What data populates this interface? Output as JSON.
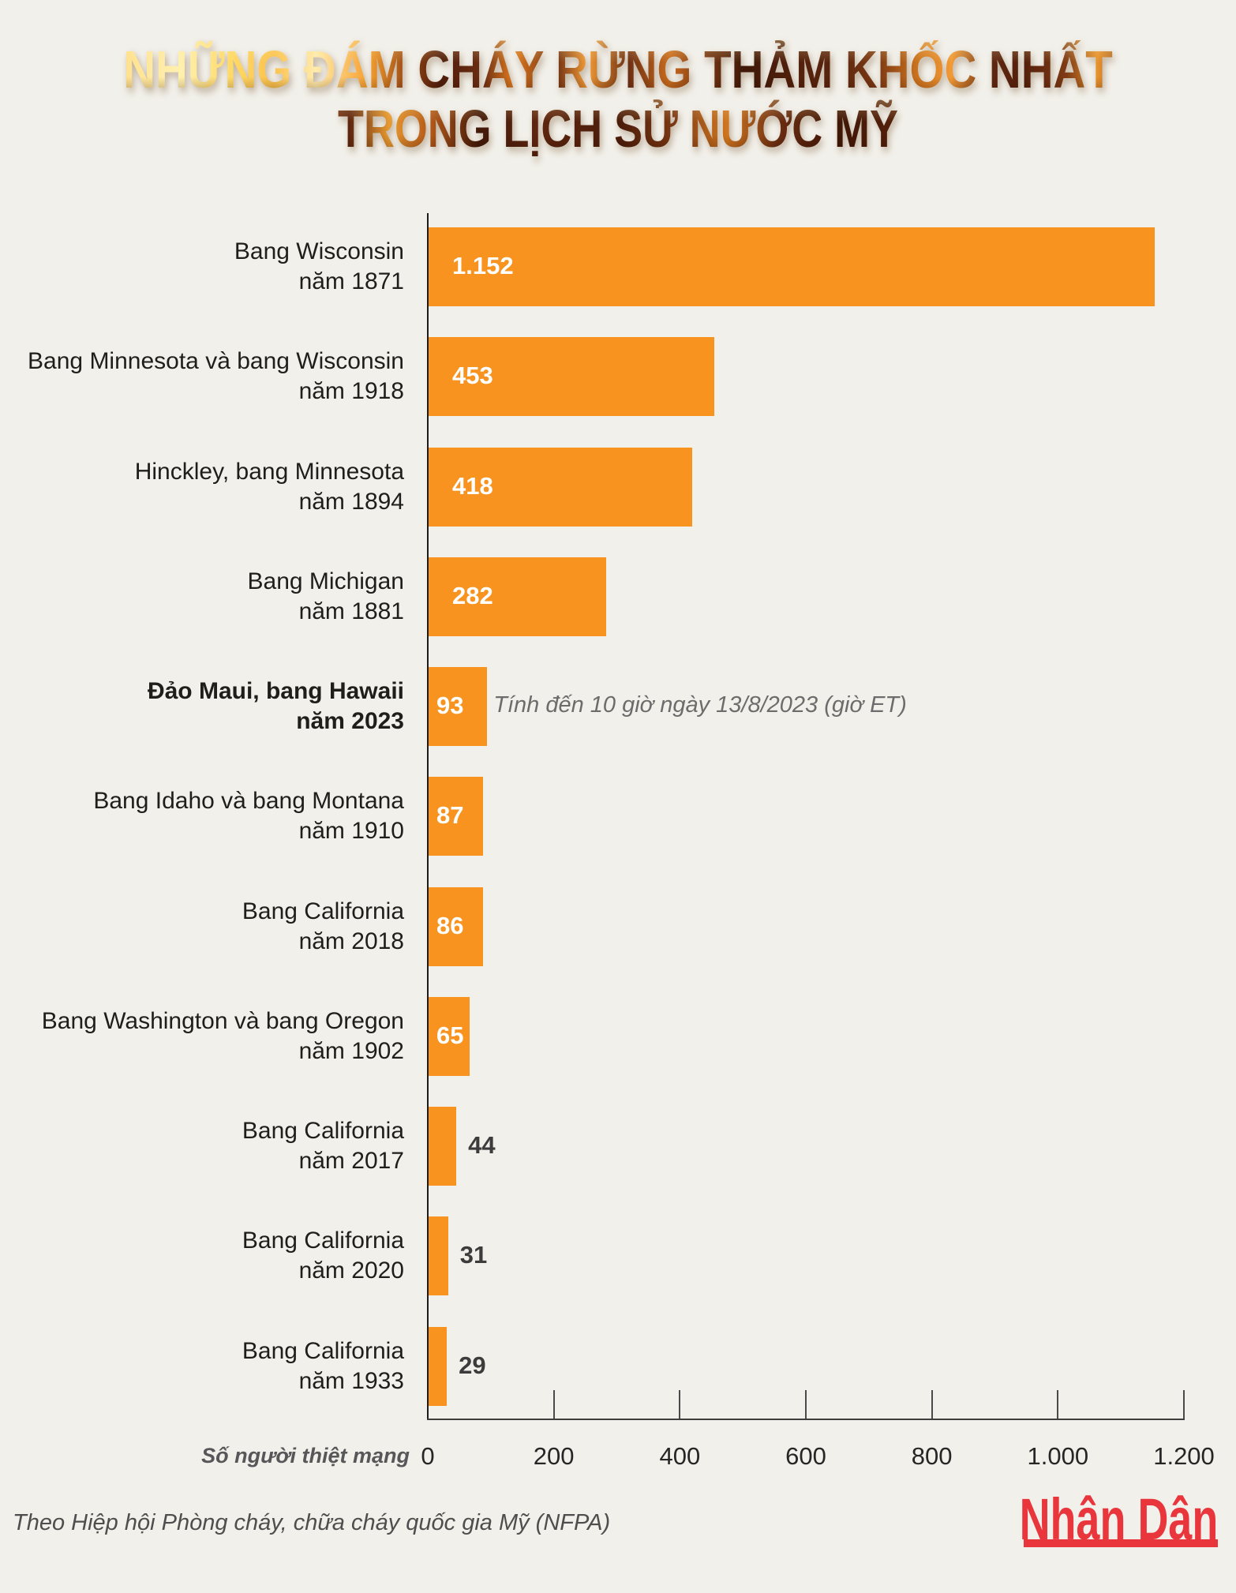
{
  "title": {
    "line1": "NHỮNG ĐÁM CHÁY RỪNG THẢM KHỐC NHẤT",
    "line2": "TRONG LỊCH SỬ NƯỚC MỸ"
  },
  "chart_data": {
    "type": "bar",
    "orientation": "horizontal",
    "title": "NHỮNG ĐÁM CHÁY RỪNG THẢM KHỐC NHẤT TRONG LỊCH SỬ NƯỚC MỸ",
    "xlabel": "Số người thiệt mạng",
    "xlim": [
      0,
      1200
    ],
    "xticks": [
      0,
      200,
      400,
      600,
      800,
      1000,
      1200
    ],
    "xtick_labels": [
      "0",
      "200",
      "400",
      "600",
      "800",
      "1.000",
      "1.200"
    ],
    "bar_color": "#F7931E",
    "grid": false,
    "categories": [
      {
        "line1": "Bang Wisconsin",
        "line2": "năm 1871",
        "bold": false
      },
      {
        "line1": "Bang Minnesota và bang Wisconsin",
        "line2": "năm 1918",
        "bold": false
      },
      {
        "line1": "Hinckley, bang Minnesota",
        "line2": "năm 1894",
        "bold": false
      },
      {
        "line1": "Bang Michigan",
        "line2": "năm 1881",
        "bold": false
      },
      {
        "line1": "Đảo Maui, bang Hawaii",
        "line2": "năm 2023",
        "bold": true
      },
      {
        "line1": "Bang Idaho và bang Montana",
        "line2": "năm 1910",
        "bold": false
      },
      {
        "line1": "Bang California",
        "line2": "năm 2018",
        "bold": false
      },
      {
        "line1": "Bang Washington và bang Oregon",
        "line2": "năm 1902",
        "bold": false
      },
      {
        "line1": "Bang California",
        "line2": "năm 2017",
        "bold": false
      },
      {
        "line1": "Bang California",
        "line2": "năm 2020",
        "bold": false
      },
      {
        "line1": "Bang California",
        "line2": "năm 1933",
        "bold": false
      }
    ],
    "values": [
      1152,
      453,
      418,
      282,
      93,
      87,
      86,
      65,
      44,
      31,
      29
    ],
    "value_labels": [
      "1.152",
      "453",
      "418",
      "282",
      "93",
      "87",
      "86",
      "65",
      "44",
      "31",
      "29"
    ],
    "annotation": {
      "row": 4,
      "text": "Tính đến 10 giờ ngày 13/8/2023 (giờ ET)"
    }
  },
  "source": "Theo Hiệp hội Phòng cháy, chữa cháy quốc gia Mỹ (NFPA)",
  "logo": "Nhân Dân"
}
